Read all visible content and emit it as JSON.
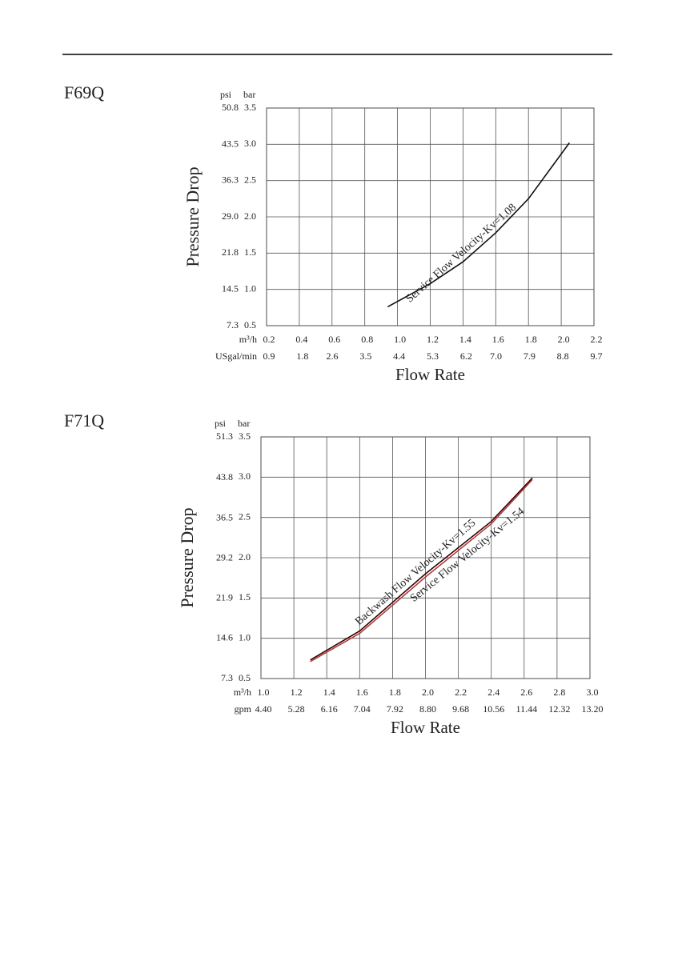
{
  "chart_data": [
    {
      "type": "line",
      "title": "F69Q",
      "ylabel": "Pressure Drop",
      "xlabel": "Flow Rate",
      "y_unit": "bar",
      "y2_unit": "psi",
      "x_unit": "m³/h",
      "x2_unit": "USgal/min",
      "xlim": [
        0.2,
        2.2
      ],
      "xticks": [
        0.2,
        0.4,
        0.6,
        0.8,
        {
          "value": 1,
          "label": "1.0"
        },
        1.2,
        1.4,
        1.6,
        1.8,
        {
          "value": 2,
          "label": "2.0"
        },
        2.2
      ],
      "x2lim": [
        0.9,
        9.7
      ],
      "x2ticks": [
        0.9,
        1.8,
        2.6,
        3.5,
        4.4,
        5.3,
        6.2,
        {
          "value": 7,
          "label": "7.0"
        },
        7.9,
        8.8,
        9.7
      ],
      "ylim": [
        0.5,
        3.5
      ],
      "yticks": [
        0.5,
        {
          "value": 1,
          "label": "1.0"
        },
        1.5,
        {
          "value": 2,
          "label": "2.0"
        },
        2.5,
        {
          "value": 3,
          "label": "3.0"
        },
        3.5
      ],
      "y2lim": [
        7.3,
        50.8
      ],
      "y2ticks": [
        7.3,
        14.5,
        21.8,
        {
          "value": 29,
          "label": "29.0"
        },
        36.3,
        43.5,
        50.8
      ],
      "grid": true,
      "x": [
        0.94,
        1.2,
        1.4,
        1.6,
        1.8,
        2.05
      ],
      "series": [
        {
          "name": "Service Flow Velocity-Kv=1.08",
          "color": "#111111",
          "values": [
            0.76,
            1.08,
            1.38,
            1.78,
            2.25,
            3.02
          ]
        }
      ]
    },
    {
      "type": "line",
      "title": "F71Q",
      "ylabel": "Pressure Drop",
      "xlabel": "Flow Rate",
      "y_unit": "bar",
      "y2_unit": "psi",
      "x_unit": "m³/h",
      "x2_unit": "gpm",
      "xlim": [
        1,
        3
      ],
      "xticks": [
        {
          "value": 1,
          "label": "1.0"
        },
        1.2,
        1.4,
        1.6,
        1.8,
        {
          "value": 2,
          "label": "2.0"
        },
        2.2,
        2.4,
        2.6,
        2.8,
        {
          "value": 3,
          "label": "3.0"
        }
      ],
      "x2lim": [
        4.4,
        13.2
      ],
      "x2ticks": [
        {
          "value": 4.4,
          "label": "4.40"
        },
        5.28,
        6.16,
        7.04,
        7.92,
        {
          "value": 8.8,
          "label": "8.80"
        },
        9.68,
        10.56,
        11.44,
        12.32,
        {
          "value": 13.2,
          "label": "13.20"
        }
      ],
      "ylim": [
        0.5,
        3.5
      ],
      "yticks": [
        0.5,
        {
          "value": 1,
          "label": "1.0"
        },
        1.5,
        {
          "value": 2,
          "label": "2.0"
        },
        2.5,
        {
          "value": 3,
          "label": "3.0"
        },
        3.5
      ],
      "y2lim": [
        7.3,
        51.3
      ],
      "y2ticks": [
        7.3,
        14.6,
        21.9,
        29.2,
        36.5,
        43.8,
        51.3
      ],
      "grid": true,
      "x": [
        1.3,
        1.6,
        2.0,
        2.4,
        2.65
      ],
      "series": [
        {
          "name": "Backwash Flow Velocity-Kv=1.55",
          "color": "#111111",
          "values": [
            0.73,
            1.09,
            1.8,
            2.45,
            2.99
          ]
        },
        {
          "name": "Service Flow Velocity-Kv=1.54",
          "color": "#d03030",
          "values": [
            0.71,
            1.06,
            1.76,
            2.42,
            2.97
          ]
        }
      ]
    }
  ]
}
